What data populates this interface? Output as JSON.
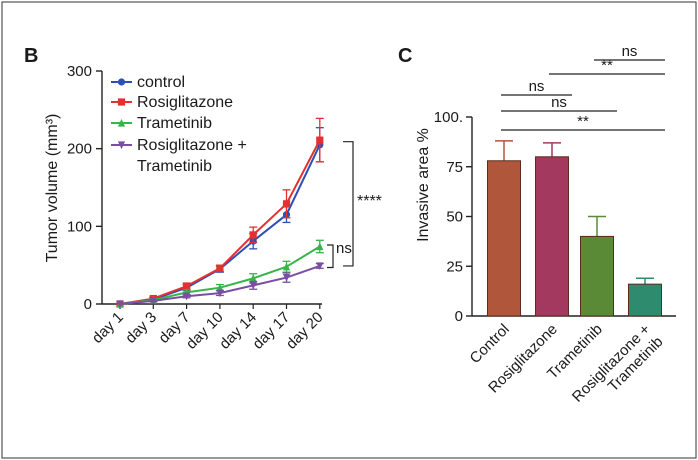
{
  "panels": {
    "left_letter": "B",
    "right_letter": "C"
  },
  "chart_data": [
    {
      "type": "line",
      "ylabel": "Tumor volume (mm³)",
      "categories": [
        "day 1",
        "day 3",
        "day 7",
        "day 10",
        "day 14",
        "day 17",
        "day 20"
      ],
      "ylim": [
        0,
        300
      ],
      "yticks": [
        "0",
        "100",
        "200",
        "300"
      ],
      "legend_position": "top-left",
      "series": [
        {
          "name": "control",
          "color": "#2e4fb5",
          "marker": "circle",
          "values": [
            0,
            6,
            21,
            45,
            81,
            115,
            205
          ],
          "errors": [
            0,
            2,
            4,
            4,
            10,
            10,
            22
          ]
        },
        {
          "name": "Rosiglitazone",
          "color": "#e53030",
          "marker": "square",
          "values": [
            0,
            7,
            23,
            46,
            89,
            129,
            211
          ],
          "errors": [
            0,
            2,
            4,
            4,
            10,
            18,
            28
          ]
        },
        {
          "name": "Trametinib",
          "color": "#36b54a",
          "marker": "triangle-up",
          "values": [
            0,
            5,
            15,
            21,
            33,
            48,
            74
          ],
          "errors": [
            0,
            2,
            3,
            4,
            6,
            7,
            8
          ]
        },
        {
          "name": "Rosiglitazone + Trametinib",
          "color": "#7a4ea3",
          "marker": "triangle-down",
          "name_lines": [
            "Rosiglitazone +",
            "Trametinib"
          ],
          "values": [
            0,
            4,
            10,
            14,
            24,
            34,
            49
          ],
          "errors": [
            0,
            1,
            2,
            3,
            5,
            6,
            3
          ]
        }
      ],
      "annotations": {
        "outer_bracket": "****",
        "inner_bracket": "ns"
      }
    },
    {
      "type": "bar",
      "ylabel": "Invasive area %",
      "categories": [
        "Control",
        "Rosiglitazone",
        "Trametinib",
        "Rosiglitazone + Trametinib"
      ],
      "category_lines": [
        [
          "Control"
        ],
        [
          "Rosiglitazone"
        ],
        [
          "Trametinib"
        ],
        [
          "Rosiglitazone +",
          "Trametinib"
        ]
      ],
      "values": [
        78,
        80,
        40,
        16
      ],
      "errors": [
        10,
        7,
        10,
        3
      ],
      "colors": [
        "#b0563a",
        "#a3395e",
        "#5a8a35",
        "#2e8b6e"
      ],
      "ylim": [
        0,
        100
      ],
      "yticks": [
        "0",
        "25",
        "50",
        "75",
        "100."
      ],
      "significance": [
        {
          "from": 2,
          "to": 3,
          "label": "ns"
        },
        {
          "from": 1,
          "to": 3,
          "label": "**"
        },
        {
          "from": 0,
          "to": 1,
          "label": "ns"
        },
        {
          "from": 0,
          "to": 2,
          "label": "ns"
        },
        {
          "from": 0,
          "to": 3,
          "label": "**"
        }
      ]
    }
  ]
}
